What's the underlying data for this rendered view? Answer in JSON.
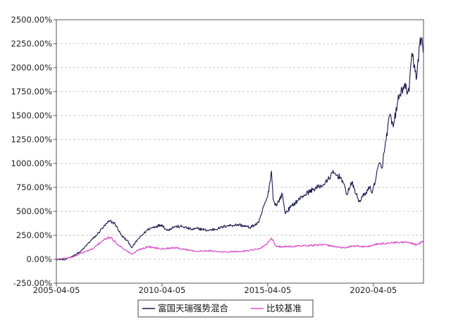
{
  "chart_data": {
    "type": "line",
    "title": "",
    "xlabel": "",
    "ylabel": "",
    "x_range": [
      "2005-04-05",
      "2022-08-20"
    ],
    "ylim": [
      -250,
      2500
    ],
    "y_ticks": [
      -250,
      0,
      250,
      500,
      750,
      1000,
      1250,
      1500,
      1750,
      2000,
      2250,
      2500
    ],
    "y_tick_labels": [
      "-250.00%",
      "0.00%",
      "250.00%",
      "500.00%",
      "750.00%",
      "1000.00%",
      "1250.00%",
      "1500.00%",
      "1750.00%",
      "2000.00%",
      "2250.00%",
      "2500.00%"
    ],
    "x_ticks": [
      "2005-04-05",
      "2010-04-05",
      "2015-04-05",
      "2020-04-05"
    ],
    "x_tick_labels": [
      "2005-04-05",
      "2010-04-05",
      "2015-04-05",
      "2020-04-05"
    ],
    "grid": "horizontal dashed",
    "legend_position": "bottom-center",
    "series": [
      {
        "name": "富国天瑞强势混合",
        "color": "#1a1a4d",
        "x": [
          "2005-04-05",
          "2005-09-01",
          "2006-01-01",
          "2006-06-01",
          "2006-12-01",
          "2007-03-01",
          "2007-06-01",
          "2007-10-15",
          "2008-01-15",
          "2008-05-01",
          "2008-09-01",
          "2008-11-01",
          "2009-02-01",
          "2009-08-01",
          "2009-12-01",
          "2010-04-05",
          "2010-07-01",
          "2010-11-01",
          "2011-04-01",
          "2011-09-01",
          "2012-01-01",
          "2012-06-01",
          "2012-12-01",
          "2013-05-01",
          "2013-12-01",
          "2014-06-01",
          "2014-11-01",
          "2015-02-01",
          "2015-04-05",
          "2015-06-10",
          "2015-07-10",
          "2015-09-01",
          "2015-12-15",
          "2016-02-01",
          "2016-06-01",
          "2016-12-01",
          "2017-06-01",
          "2017-12-01",
          "2018-02-01",
          "2018-05-01",
          "2018-10-01",
          "2019-01-01",
          "2019-04-01",
          "2019-08-01",
          "2019-12-01",
          "2020-02-01",
          "2020-03-20",
          "2020-07-15",
          "2020-09-01",
          "2021-01-10",
          "2021-03-15",
          "2021-06-01",
          "2021-09-01",
          "2021-12-15",
          "2022-02-01",
          "2022-04-25",
          "2022-06-15",
          "2022-07-15",
          "2022-08-20"
        ],
        "values": [
          0,
          -5,
          30,
          80,
          200,
          250,
          320,
          400,
          370,
          250,
          180,
          120,
          200,
          310,
          340,
          360,
          300,
          340,
          340,
          310,
          320,
          300,
          320,
          350,
          360,
          330,
          380,
          560,
          650,
          920,
          620,
          560,
          680,
          480,
          560,
          660,
          730,
          780,
          820,
          900,
          850,
          680,
          800,
          600,
          700,
          750,
          700,
          1000,
          950,
          1500,
          1380,
          1650,
          1800,
          1750,
          2150,
          1900,
          2250,
          2300,
          2150
        ]
      },
      {
        "name": "比较基准",
        "color": "#d94fc9",
        "x": [
          "2005-04-05",
          "2006-01-01",
          "2006-06-01",
          "2007-01-01",
          "2007-06-01",
          "2007-10-15",
          "2008-04-01",
          "2008-11-01",
          "2009-03-01",
          "2009-08-01",
          "2010-04-05",
          "2010-11-01",
          "2011-06-01",
          "2012-01-01",
          "2012-06-01",
          "2013-01-01",
          "2014-01-01",
          "2014-12-01",
          "2015-03-01",
          "2015-06-10",
          "2015-09-01",
          "2016-02-01",
          "2016-12-01",
          "2017-12-01",
          "2018-06-01",
          "2018-12-01",
          "2019-04-01",
          "2019-12-01",
          "2020-07-15",
          "2021-02-01",
          "2021-12-01",
          "2022-04-25",
          "2022-08-20"
        ],
        "values": [
          0,
          20,
          60,
          110,
          190,
          230,
          140,
          50,
          100,
          130,
          110,
          120,
          100,
          80,
          90,
          75,
          80,
          110,
          150,
          220,
          130,
          130,
          140,
          150,
          135,
          115,
          140,
          130,
          160,
          170,
          175,
          150,
          190
        ]
      }
    ]
  }
}
